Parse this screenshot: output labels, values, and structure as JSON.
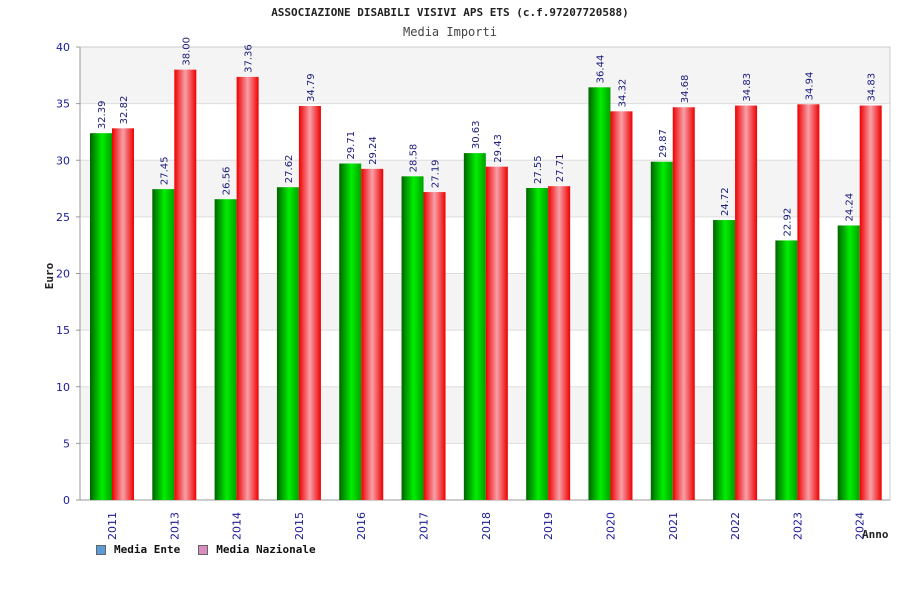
{
  "title": "ASSOCIAZIONE DISABILI VISIVI APS ETS (c.f.97207720588)",
  "subtitle": "Media Importi",
  "legend": [
    {
      "label": "Media Ente",
      "color": "#5a9bd8"
    },
    {
      "label": "Media Nazionale",
      "color": "#d98cc0"
    }
  ],
  "chart_data": {
    "type": "bar",
    "title": "Media Importi",
    "xlabel": "Anno",
    "ylabel": "Euro",
    "ylim": [
      0,
      40
    ],
    "yticks": [
      0,
      5,
      10,
      15,
      20,
      25,
      30,
      35,
      40
    ],
    "grid": true,
    "legend_position": "bottom-left",
    "categories": [
      "2011",
      "2013",
      "2014",
      "2015",
      "2016",
      "2017",
      "2018",
      "2019",
      "2020",
      "2021",
      "2022",
      "2023",
      "2024"
    ],
    "series": [
      {
        "name": "Media Ente",
        "color": "#00aa00",
        "values": [
          32.39,
          27.45,
          26.56,
          27.62,
          29.71,
          28.58,
          30.63,
          27.55,
          36.44,
          29.87,
          24.72,
          22.92,
          24.24
        ],
        "labels": [
          "32.39",
          "27.45",
          "26.56",
          "27.62",
          "29.71",
          "28.58",
          "30.63",
          "27.55",
          "36.44",
          "29.87",
          "24.72",
          "22.92",
          "24.24"
        ]
      },
      {
        "name": "Media Nazionale",
        "color": "#ee0000",
        "values": [
          32.82,
          38.0,
          37.36,
          34.79,
          29.24,
          27.19,
          29.43,
          27.71,
          34.32,
          34.68,
          34.83,
          34.94,
          34.83
        ],
        "labels": [
          "32.82",
          "38.00",
          "37.36",
          "34.79",
          "29.24",
          "27.19",
          "29.43",
          "27.71",
          "34.32",
          "34.68",
          "34.83",
          "34.94",
          "34.83"
        ]
      }
    ]
  }
}
